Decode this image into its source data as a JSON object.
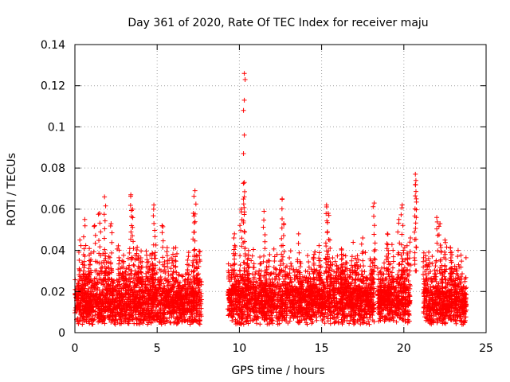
{
  "chart_data": {
    "type": "scatter",
    "title": "Day 361 of 2020, Rate Of TEC Index for receiver maju",
    "xlabel": "GPS time / hours",
    "ylabel": "ROTI / TECUs",
    "xlim": [
      0,
      25
    ],
    "ylim": [
      0,
      0.14
    ],
    "xticks": [
      0,
      5,
      10,
      15,
      20,
      25
    ],
    "xtick_labels": [
      "0",
      "5",
      "10",
      "15",
      "20",
      "25"
    ],
    "yticks": [
      0,
      0.02,
      0.04,
      0.06,
      0.08,
      0.1,
      0.12,
      0.14
    ],
    "ytick_labels": [
      "0",
      "0.02",
      "0.04",
      "0.06",
      "0.08",
      "0.1",
      "0.12",
      "0.14"
    ],
    "grid": true,
    "marker": "+",
    "color": "#ff0000",
    "data_segments": [
      {
        "x_start": 0.0,
        "x_end": 7.7,
        "baseline": 0.015,
        "spread": 0.012
      },
      {
        "x_start": 9.3,
        "x_end": 18.2,
        "baseline": 0.016,
        "spread": 0.012
      },
      {
        "x_start": 18.4,
        "x_end": 20.4,
        "baseline": 0.016,
        "spread": 0.011
      },
      {
        "x_start": 21.2,
        "x_end": 23.8,
        "baseline": 0.015,
        "spread": 0.011
      }
    ],
    "peaks": [
      {
        "x": 0.3,
        "y": 0.045
      },
      {
        "x": 0.6,
        "y": 0.055
      },
      {
        "x": 1.2,
        "y": 0.052
      },
      {
        "x": 1.5,
        "y": 0.058
      },
      {
        "x": 1.8,
        "y": 0.066
      },
      {
        "x": 2.2,
        "y": 0.053
      },
      {
        "x": 3.4,
        "y": 0.067
      },
      {
        "x": 3.5,
        "y": 0.06
      },
      {
        "x": 4.8,
        "y": 0.062
      },
      {
        "x": 5.3,
        "y": 0.052
      },
      {
        "x": 7.3,
        "y": 0.069
      },
      {
        "x": 7.2,
        "y": 0.058
      },
      {
        "x": 9.7,
        "y": 0.048
      },
      {
        "x": 10.1,
        "y": 0.06
      },
      {
        "x": 10.3,
        "y": 0.126
      },
      {
        "x": 10.35,
        "y": 0.123
      },
      {
        "x": 10.3,
        "y": 0.113
      },
      {
        "x": 10.25,
        "y": 0.108
      },
      {
        "x": 10.3,
        "y": 0.096
      },
      {
        "x": 10.25,
        "y": 0.087
      },
      {
        "x": 10.3,
        "y": 0.073
      },
      {
        "x": 10.3,
        "y": 0.066
      },
      {
        "x": 11.5,
        "y": 0.059
      },
      {
        "x": 12.6,
        "y": 0.065
      },
      {
        "x": 12.7,
        "y": 0.053
      },
      {
        "x": 13.6,
        "y": 0.048
      },
      {
        "x": 15.3,
        "y": 0.062
      },
      {
        "x": 15.4,
        "y": 0.058
      },
      {
        "x": 15.5,
        "y": 0.045
      },
      {
        "x": 17.5,
        "y": 0.046
      },
      {
        "x": 18.2,
        "y": 0.063
      },
      {
        "x": 19.0,
        "y": 0.048
      },
      {
        "x": 19.7,
        "y": 0.055
      },
      {
        "x": 19.9,
        "y": 0.062
      },
      {
        "x": 20.4,
        "y": 0.046
      },
      {
        "x": 20.7,
        "y": 0.077
      },
      {
        "x": 20.7,
        "y": 0.072
      },
      {
        "x": 22.0,
        "y": 0.056
      },
      {
        "x": 22.2,
        "y": 0.053
      },
      {
        "x": 22.5,
        "y": 0.045
      },
      {
        "x": 23.3,
        "y": 0.04
      }
    ]
  }
}
